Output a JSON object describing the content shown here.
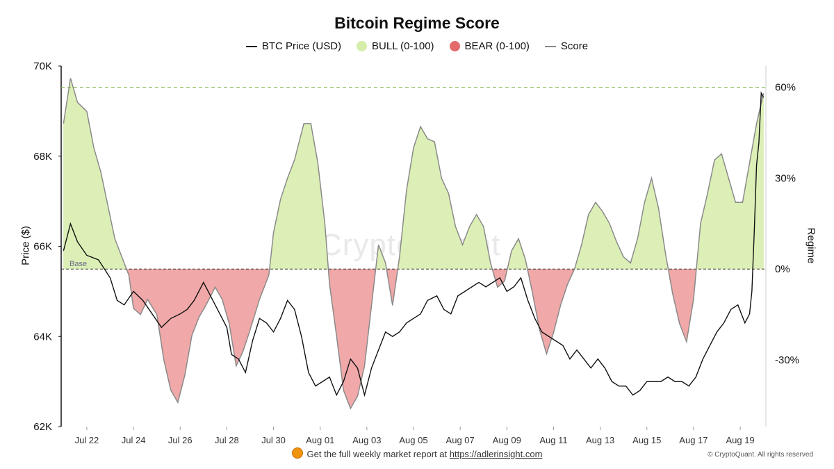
{
  "title": "Bitcoin Regime Score",
  "legend": [
    {
      "label": "BTC Price (USD)",
      "kind": "line",
      "color": "#111111"
    },
    {
      "label": "BULL (0-100)",
      "kind": "dot",
      "color": "#d6eda9"
    },
    {
      "label": "BEAR (0-100)",
      "kind": "dot",
      "color": "#e36b6b"
    },
    {
      "label": "Score",
      "kind": "line",
      "color": "#888888"
    }
  ],
  "watermark": "CryptoQuant",
  "footer": {
    "text": "Get the full weekly market report at ",
    "link": "https://adlerinsight.com",
    "copyright": "© CryptoQuant. All rights reserved"
  },
  "chart_data": {
    "type": "line",
    "y_left": {
      "label": "Price ($)",
      "range": [
        62000,
        70000
      ],
      "ticks": [
        {
          "v": 62000,
          "label": "62K"
        },
        {
          "v": 64000,
          "label": "64K"
        },
        {
          "v": 66000,
          "label": "66K"
        },
        {
          "v": 68000,
          "label": "68K"
        },
        {
          "v": 70000,
          "label": "70K"
        }
      ]
    },
    "y_right": {
      "label": "Regime",
      "range": [
        -52,
        67
      ],
      "ticks": [
        {
          "v": 60,
          "label": "60%"
        },
        {
          "v": 30,
          "label": "30%"
        },
        {
          "v": 0,
          "label": "0%"
        },
        {
          "v": -30,
          "label": "-30%"
        }
      ]
    },
    "x": {
      "range": [
        20.9,
        51.1
      ],
      "ticks": [
        {
          "v": 22,
          "label": "Jul 22"
        },
        {
          "v": 24,
          "label": "Jul 24"
        },
        {
          "v": 26,
          "label": "Jul 26"
        },
        {
          "v": 28,
          "label": "Jul 28"
        },
        {
          "v": 30,
          "label": "Jul 30"
        },
        {
          "v": 32,
          "label": "Aug 01"
        },
        {
          "v": 34,
          "label": "Aug 03"
        },
        {
          "v": 36,
          "label": "Aug 05"
        },
        {
          "v": 38,
          "label": "Aug 07"
        },
        {
          "v": 40,
          "label": "Aug 09"
        },
        {
          "v": 42,
          "label": "Aug 11"
        },
        {
          "v": 44,
          "label": "Aug 13"
        },
        {
          "v": 46,
          "label": "Aug 15"
        },
        {
          "v": 48,
          "label": "Aug 17"
        },
        {
          "v": 50,
          "label": "Aug 19"
        }
      ]
    },
    "reference_lines": [
      {
        "axis": "right",
        "value": 0,
        "label": "Base"
      },
      {
        "axis": "right",
        "value": 60,
        "label": ""
      }
    ],
    "series": [
      {
        "name": "BTC Price (USD)",
        "axis": "left",
        "points": [
          [
            21.0,
            65900
          ],
          [
            21.3,
            66500
          ],
          [
            21.6,
            66100
          ],
          [
            22.0,
            65800
          ],
          [
            22.5,
            65700
          ],
          [
            23.0,
            65300
          ],
          [
            23.3,
            64800
          ],
          [
            23.6,
            64700
          ],
          [
            24.0,
            65000
          ],
          [
            24.4,
            64800
          ],
          [
            24.8,
            64500
          ],
          [
            25.2,
            64200
          ],
          [
            25.6,
            64400
          ],
          [
            26.0,
            64500
          ],
          [
            26.3,
            64600
          ],
          [
            26.6,
            64800
          ],
          [
            27.0,
            65200
          ],
          [
            27.3,
            64900
          ],
          [
            27.6,
            64600
          ],
          [
            28.0,
            64200
          ],
          [
            28.2,
            63600
          ],
          [
            28.5,
            63500
          ],
          [
            28.8,
            63200
          ],
          [
            29.1,
            63900
          ],
          [
            29.4,
            64400
          ],
          [
            29.7,
            64300
          ],
          [
            30.0,
            64100
          ],
          [
            30.3,
            64400
          ],
          [
            30.6,
            64800
          ],
          [
            30.9,
            64600
          ],
          [
            31.2,
            64000
          ],
          [
            31.5,
            63200
          ],
          [
            31.8,
            62900
          ],
          [
            32.1,
            63000
          ],
          [
            32.4,
            63100
          ],
          [
            32.7,
            62700
          ],
          [
            33.0,
            63000
          ],
          [
            33.3,
            63500
          ],
          [
            33.6,
            63300
          ],
          [
            33.9,
            62700
          ],
          [
            34.2,
            63300
          ],
          [
            34.5,
            63700
          ],
          [
            34.8,
            64100
          ],
          [
            35.1,
            64000
          ],
          [
            35.4,
            64100
          ],
          [
            35.7,
            64300
          ],
          [
            36.0,
            64400
          ],
          [
            36.3,
            64500
          ],
          [
            36.6,
            64800
          ],
          [
            37.0,
            64900
          ],
          [
            37.3,
            64600
          ],
          [
            37.6,
            64500
          ],
          [
            37.9,
            64900
          ],
          [
            38.2,
            65000
          ],
          [
            38.5,
            65100
          ],
          [
            38.8,
            65200
          ],
          [
            39.1,
            65100
          ],
          [
            39.4,
            65200
          ],
          [
            39.7,
            65300
          ],
          [
            40.0,
            65000
          ],
          [
            40.3,
            65100
          ],
          [
            40.6,
            65300
          ],
          [
            40.9,
            64800
          ],
          [
            41.2,
            64400
          ],
          [
            41.5,
            64100
          ],
          [
            41.8,
            64000
          ],
          [
            42.1,
            63900
          ],
          [
            42.4,
            63800
          ],
          [
            42.7,
            63500
          ],
          [
            43.0,
            63700
          ],
          [
            43.3,
            63500
          ],
          [
            43.6,
            63300
          ],
          [
            43.9,
            63500
          ],
          [
            44.2,
            63300
          ],
          [
            44.5,
            63000
          ],
          [
            44.8,
            62900
          ],
          [
            45.1,
            62900
          ],
          [
            45.4,
            62700
          ],
          [
            45.7,
            62800
          ],
          [
            46.0,
            63000
          ],
          [
            46.3,
            63000
          ],
          [
            46.6,
            63000
          ],
          [
            46.9,
            63100
          ],
          [
            47.2,
            63000
          ],
          [
            47.5,
            63000
          ],
          [
            47.8,
            62900
          ],
          [
            48.1,
            63100
          ],
          [
            48.4,
            63500
          ],
          [
            48.7,
            63800
          ],
          [
            49.0,
            64100
          ],
          [
            49.3,
            64300
          ],
          [
            49.6,
            64600
          ],
          [
            49.9,
            64700
          ],
          [
            50.2,
            64300
          ],
          [
            50.4,
            64500
          ],
          [
            50.5,
            65000
          ],
          [
            50.6,
            66300
          ],
          [
            50.7,
            67800
          ],
          [
            50.8,
            68300
          ],
          [
            50.9,
            69400
          ],
          [
            51.0,
            69300
          ]
        ]
      },
      {
        "name": "Score",
        "axis": "right",
        "points": [
          [
            21.0,
            48
          ],
          [
            21.3,
            63
          ],
          [
            21.6,
            55
          ],
          [
            22.0,
            52
          ],
          [
            22.3,
            40
          ],
          [
            22.6,
            32
          ],
          [
            22.9,
            21
          ],
          [
            23.2,
            10
          ],
          [
            23.5,
            4
          ],
          [
            23.8,
            -2
          ],
          [
            24.0,
            -13
          ],
          [
            24.3,
            -15
          ],
          [
            24.6,
            -10
          ],
          [
            25.0,
            -15
          ],
          [
            25.3,
            -30
          ],
          [
            25.6,
            -40
          ],
          [
            25.9,
            -44
          ],
          [
            26.2,
            -35
          ],
          [
            26.5,
            -22
          ],
          [
            26.8,
            -16
          ],
          [
            27.1,
            -12
          ],
          [
            27.5,
            -6
          ],
          [
            27.8,
            -10
          ],
          [
            28.1,
            -18
          ],
          [
            28.4,
            -32
          ],
          [
            28.7,
            -27
          ],
          [
            29.0,
            -20
          ],
          [
            29.4,
            -10
          ],
          [
            29.8,
            -2
          ],
          [
            30.0,
            12
          ],
          [
            30.3,
            23
          ],
          [
            30.6,
            30
          ],
          [
            30.9,
            36
          ],
          [
            31.3,
            48
          ],
          [
            31.6,
            48
          ],
          [
            31.9,
            35
          ],
          [
            32.2,
            15
          ],
          [
            32.4,
            -5
          ],
          [
            32.7,
            -22
          ],
          [
            33.0,
            -40
          ],
          [
            33.3,
            -46
          ],
          [
            33.6,
            -42
          ],
          [
            33.9,
            -32
          ],
          [
            34.2,
            -12
          ],
          [
            34.5,
            8
          ],
          [
            34.8,
            2
          ],
          [
            35.1,
            -12
          ],
          [
            35.4,
            4
          ],
          [
            35.7,
            26
          ],
          [
            36.0,
            40
          ],
          [
            36.3,
            47
          ],
          [
            36.6,
            43
          ],
          [
            36.9,
            42
          ],
          [
            37.2,
            30
          ],
          [
            37.5,
            25
          ],
          [
            37.8,
            14
          ],
          [
            38.1,
            8
          ],
          [
            38.4,
            14
          ],
          [
            38.7,
            18
          ],
          [
            39.0,
            14
          ],
          [
            39.3,
            2
          ],
          [
            39.6,
            -6
          ],
          [
            39.9,
            -4
          ],
          [
            40.2,
            6
          ],
          [
            40.5,
            10
          ],
          [
            40.8,
            3
          ],
          [
            41.1,
            -8
          ],
          [
            41.4,
            -20
          ],
          [
            41.7,
            -28
          ],
          [
            42.0,
            -21
          ],
          [
            42.3,
            -12
          ],
          [
            42.6,
            -5
          ],
          [
            42.9,
            0
          ],
          [
            43.2,
            8
          ],
          [
            43.5,
            18
          ],
          [
            43.8,
            22
          ],
          [
            44.1,
            19
          ],
          [
            44.4,
            15
          ],
          [
            44.7,
            9
          ],
          [
            45.0,
            4
          ],
          [
            45.3,
            2
          ],
          [
            45.6,
            10
          ],
          [
            45.9,
            22
          ],
          [
            46.2,
            30
          ],
          [
            46.5,
            20
          ],
          [
            46.8,
            5
          ],
          [
            47.1,
            -8
          ],
          [
            47.4,
            -18
          ],
          [
            47.7,
            -24
          ],
          [
            48.0,
            -10
          ],
          [
            48.3,
            15
          ],
          [
            48.6,
            25
          ],
          [
            48.9,
            36
          ],
          [
            49.2,
            38
          ],
          [
            49.5,
            30
          ],
          [
            49.8,
            22
          ],
          [
            50.1,
            22
          ],
          [
            50.4,
            35
          ],
          [
            50.7,
            48
          ],
          [
            51.0,
            58
          ]
        ]
      }
    ]
  }
}
